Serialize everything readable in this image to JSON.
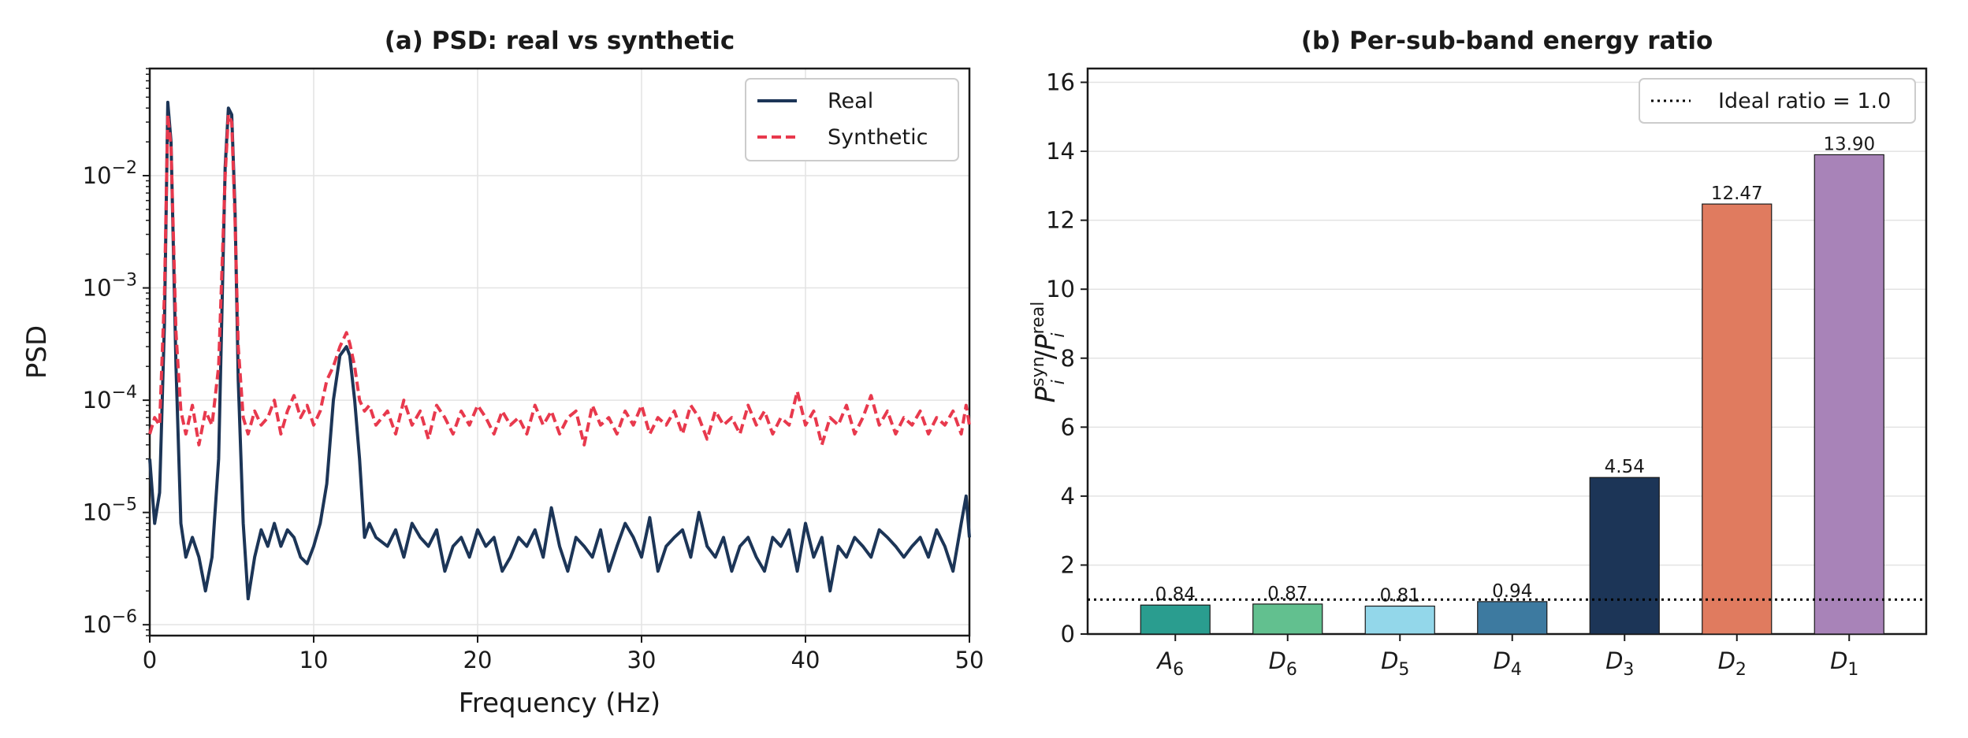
{
  "chart_data": [
    {
      "type": "line",
      "title": "(a) PSD: real vs synthetic",
      "xlabel": "Frequency (Hz)",
      "ylabel": "PSD",
      "xlim": [
        0,
        50
      ],
      "ylim": [
        8e-07,
        0.09
      ],
      "yscale": "log",
      "grid": true,
      "legend_placement": "top-right",
      "x_ticks": [
        "0",
        "10",
        "20",
        "30",
        "40",
        "50"
      ],
      "y_ticks": [
        {
          "base": "10",
          "exp": "−6",
          "value": 1e-06
        },
        {
          "base": "10",
          "exp": "−5",
          "value": 1e-05
        },
        {
          "base": "10",
          "exp": "−4",
          "value": 0.0001
        },
        {
          "base": "10",
          "exp": "−3",
          "value": 0.001
        },
        {
          "base": "10",
          "exp": "−2",
          "value": 0.01
        }
      ],
      "series": [
        {
          "name": "Real",
          "color": "#1c3557",
          "style": "solid",
          "x": [
            0,
            0.3,
            0.6,
            0.9,
            1.1,
            1.3,
            1.6,
            1.9,
            2.2,
            2.6,
            3.0,
            3.4,
            3.8,
            4.2,
            4.6,
            4.8,
            5.0,
            5.2,
            5.4,
            5.7,
            6.0,
            6.4,
            6.8,
            7.2,
            7.6,
            8.0,
            8.4,
            8.8,
            9.2,
            9.6,
            10.0,
            10.4,
            10.8,
            11.2,
            11.6,
            12.0,
            12.2,
            12.5,
            12.8,
            13.1,
            13.4,
            13.8,
            14.5,
            15.0,
            15.5,
            16.0,
            16.5,
            17.0,
            17.5,
            18.0,
            18.5,
            19.0,
            19.5,
            20.0,
            20.5,
            21.0,
            21.5,
            22.0,
            22.5,
            23.0,
            23.5,
            24.0,
            24.5,
            25.0,
            25.5,
            26.0,
            26.5,
            27.0,
            27.5,
            28.0,
            28.5,
            29.0,
            29.5,
            30.0,
            30.5,
            31.0,
            31.5,
            32.0,
            32.5,
            33.0,
            33.5,
            34.0,
            34.5,
            35.0,
            35.5,
            36.0,
            36.5,
            37.0,
            37.5,
            38.0,
            38.5,
            39.0,
            39.5,
            40.0,
            40.5,
            41.0,
            41.5,
            42.0,
            42.5,
            43.0,
            43.5,
            44.0,
            44.5,
            45.0,
            45.5,
            46.0,
            46.5,
            47.0,
            47.5,
            48.0,
            48.5,
            49.0,
            49.5,
            49.8,
            50.0
          ],
          "values": [
            3e-05,
            8e-06,
            1.5e-05,
            0.0005,
            0.045,
            0.02,
            0.0002,
            8e-06,
            4e-06,
            6e-06,
            4e-06,
            2e-06,
            4e-06,
            3e-05,
            0.012,
            0.04,
            0.035,
            0.005,
            0.00015,
            8e-06,
            1.7e-06,
            4e-06,
            7e-06,
            5e-06,
            8e-06,
            5e-06,
            7e-06,
            6e-06,
            4e-06,
            3.5e-06,
            5e-06,
            8e-06,
            1.8e-05,
            0.0001,
            0.00025,
            0.0003,
            0.00025,
            0.0001,
            3e-05,
            6e-06,
            8e-06,
            6e-06,
            5e-06,
            7e-06,
            4e-06,
            8e-06,
            6e-06,
            5e-06,
            7e-06,
            3e-06,
            5e-06,
            6e-06,
            4e-06,
            7e-06,
            5e-06,
            6e-06,
            3e-06,
            4e-06,
            6e-06,
            5e-06,
            7e-06,
            4e-06,
            1.1e-05,
            5e-06,
            3e-06,
            6e-06,
            5e-06,
            4e-06,
            7e-06,
            3e-06,
            5e-06,
            8e-06,
            6e-06,
            4e-06,
            9e-06,
            3e-06,
            5e-06,
            6e-06,
            7e-06,
            4e-06,
            1e-05,
            5e-06,
            4e-06,
            6e-06,
            3e-06,
            5e-06,
            6e-06,
            4e-06,
            3e-06,
            6e-06,
            5e-06,
            7e-06,
            3e-06,
            8e-06,
            4e-06,
            6e-06,
            2e-06,
            5e-06,
            4e-06,
            6e-06,
            5e-06,
            4e-06,
            7e-06,
            6e-06,
            5e-06,
            4e-06,
            5e-06,
            6e-06,
            4e-06,
            7e-06,
            5e-06,
            3e-06,
            8e-06,
            1.4e-05,
            6e-06
          ]
        },
        {
          "name": "Synthetic",
          "color": "#e8394d",
          "style": "dashed",
          "x": [
            0,
            0.3,
            0.6,
            0.9,
            1.1,
            1.3,
            1.6,
            1.9,
            2.2,
            2.6,
            3.0,
            3.4,
            3.8,
            4.2,
            4.6,
            4.8,
            5.0,
            5.2,
            5.4,
            5.7,
            6.0,
            6.4,
            6.8,
            7.2,
            7.6,
            8.0,
            8.4,
            8.8,
            9.2,
            9.6,
            10.0,
            10.4,
            10.8,
            11.2,
            11.6,
            12.0,
            12.2,
            12.5,
            12.8,
            13.1,
            13.4,
            13.8,
            14.5,
            15.0,
            15.5,
            16.0,
            16.5,
            17.0,
            17.5,
            18.0,
            18.5,
            19.0,
            19.5,
            20.0,
            20.5,
            21.0,
            21.5,
            22.0,
            22.5,
            23.0,
            23.5,
            24.0,
            24.5,
            25.0,
            25.5,
            26.0,
            26.5,
            27.0,
            27.5,
            28.0,
            28.5,
            29.0,
            29.5,
            30.0,
            30.5,
            31.0,
            31.5,
            32.0,
            32.5,
            33.0,
            33.5,
            34.0,
            34.5,
            35.0,
            35.5,
            36.0,
            36.5,
            37.0,
            37.5,
            38.0,
            38.5,
            39.0,
            39.5,
            40.0,
            40.5,
            41.0,
            41.5,
            42.0,
            42.5,
            43.0,
            43.5,
            44.0,
            44.5,
            45.0,
            45.5,
            46.0,
            46.5,
            47.0,
            47.5,
            48.0,
            48.5,
            49.0,
            49.5,
            49.8,
            50.0
          ],
          "values": [
            5e-05,
            7e-05,
            6e-05,
            0.0009,
            0.035,
            0.018,
            0.0004,
            8e-05,
            5e-05,
            9e-05,
            4e-05,
            8e-05,
            6e-05,
            0.0002,
            0.01,
            0.035,
            0.03,
            0.004,
            0.0003,
            7e-05,
            5e-05,
            8e-05,
            6e-05,
            7e-05,
            0.0001,
            5e-05,
            8e-05,
            0.00011,
            7e-05,
            9e-05,
            6e-05,
            8e-05,
            0.00015,
            0.0002,
            0.0003,
            0.0004,
            0.00032,
            0.0002,
            0.0001,
            8e-05,
            9e-05,
            6e-05,
            8e-05,
            5e-05,
            0.0001,
            6e-05,
            8e-05,
            4.5e-05,
            9e-05,
            7e-05,
            5e-05,
            8e-05,
            6e-05,
            9e-05,
            7e-05,
            5e-05,
            8e-05,
            6e-05,
            7e-05,
            5e-05,
            9e-05,
            6e-05,
            8e-05,
            5e-05,
            7e-05,
            8e-05,
            4e-05,
            9e-05,
            6e-05,
            7e-05,
            5e-05,
            8e-05,
            6e-05,
            9e-05,
            5e-05,
            7e-05,
            6e-05,
            8e-05,
            5e-05,
            9e-05,
            7e-05,
            4.5e-05,
            8e-05,
            6e-05,
            7e-05,
            5e-05,
            9e-05,
            6e-05,
            8e-05,
            5e-05,
            7e-05,
            6e-05,
            0.00012,
            6e-05,
            8e-05,
            4e-05,
            7e-05,
            6e-05,
            9e-05,
            5e-05,
            7e-05,
            0.00011,
            6e-05,
            8e-05,
            5e-05,
            7e-05,
            6e-05,
            8e-05,
            5e-05,
            7e-05,
            6e-05,
            8e-05,
            5e-05,
            9e-05,
            6e-05
          ]
        }
      ]
    },
    {
      "type": "bar",
      "title": "(b) Per-sub-band energy ratio",
      "ylabel_parts": {
        "base1": "P",
        "sup1": "syn",
        "sub1": "i",
        "slash": "/",
        "base2": "P",
        "sup2": "real",
        "sub2": "i"
      },
      "ylim": [
        0,
        16.4
      ],
      "y_ticks": [
        "0",
        "2",
        "4",
        "6",
        "8",
        "10",
        "12",
        "14",
        "16"
      ],
      "grid": true,
      "legend_placement": "top-right",
      "categories": [
        {
          "base": "A",
          "sub": "6"
        },
        {
          "base": "D",
          "sub": "6"
        },
        {
          "base": "D",
          "sub": "5"
        },
        {
          "base": "D",
          "sub": "4"
        },
        {
          "base": "D",
          "sub": "3"
        },
        {
          "base": "D",
          "sub": "2"
        },
        {
          "base": "D",
          "sub": "1"
        }
      ],
      "values": [
        0.84,
        0.87,
        0.81,
        0.94,
        4.54,
        12.47,
        13.9
      ],
      "value_labels": [
        "0.84",
        "0.87",
        "0.81",
        "0.94",
        "4.54",
        "12.47",
        "13.90"
      ],
      "colors": [
        "#2a9d8f",
        "#62c08f",
        "#93d7ea",
        "#3d7aa0",
        "#1c3557",
        "#e07b5f",
        "#a883b8"
      ],
      "reference_line": {
        "name": "Ideal ratio = 1.0",
        "value": 1.0,
        "style": "dotted",
        "color": "#000000"
      }
    }
  ]
}
